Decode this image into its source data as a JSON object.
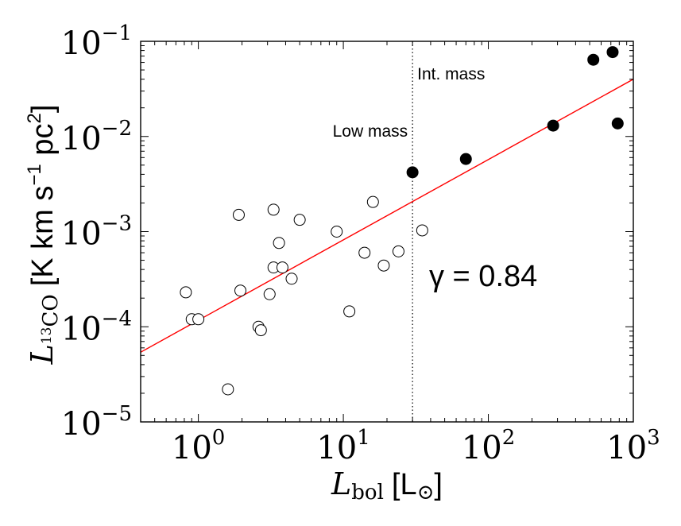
{
  "chart_data": {
    "type": "scatter",
    "xlabel": {
      "symbol": "L",
      "sub": "bol",
      "unit": "[L",
      "sun": "⊙",
      "close": "]"
    },
    "ylabel": {
      "symbol": "L",
      "sub_sup": "13",
      "sub": "CO",
      "unit": "[K km s",
      "unit_sup": "−1",
      "unit_mid": " pc",
      "unit_sup2": "2",
      "close": "]"
    },
    "xscale": "log",
    "yscale": "log",
    "xlim": [
      0.4,
      1000
    ],
    "ylim": [
      1e-05,
      0.1
    ],
    "x_ticks": [
      {
        "value": 1,
        "base": "10",
        "exp": "0"
      },
      {
        "value": 10,
        "base": "10",
        "exp": "1"
      },
      {
        "value": 100,
        "base": "10",
        "exp": "2"
      },
      {
        "value": 1000,
        "base": "10",
        "exp": "3"
      }
    ],
    "y_ticks": [
      {
        "value": 1e-05,
        "base": "10",
        "exp": "−5"
      },
      {
        "value": 0.0001,
        "base": "10",
        "exp": "−4"
      },
      {
        "value": 0.001,
        "base": "10",
        "exp": "−3"
      },
      {
        "value": 0.01,
        "base": "10",
        "exp": "−2"
      },
      {
        "value": 0.1,
        "base": "10",
        "exp": "−1"
      }
    ],
    "grid": false,
    "series": [
      {
        "marker": "open-circle",
        "points": [
          [
            0.82,
            0.00023
          ],
          [
            0.9,
            0.00012
          ],
          [
            1.0,
            0.00012
          ],
          [
            1.6,
            2.2e-05
          ],
          [
            1.9,
            0.0015
          ],
          [
            1.95,
            0.00024
          ],
          [
            2.6,
            0.0001
          ],
          [
            2.7,
            9.2e-05
          ],
          [
            3.1,
            0.00022
          ],
          [
            3.3,
            0.0017
          ],
          [
            3.3,
            0.00042
          ],
          [
            3.6,
            0.00076
          ],
          [
            3.8,
            0.00042
          ],
          [
            4.4,
            0.00032
          ],
          [
            5.0,
            0.00133
          ],
          [
            9.0,
            0.001
          ],
          [
            11.0,
            0.000145
          ],
          [
            14.0,
            0.0006
          ],
          [
            16.0,
            0.00205
          ],
          [
            19.0,
            0.00044
          ],
          [
            24.0,
            0.00062
          ],
          [
            35.0,
            0.00103
          ]
        ]
      },
      {
        "marker": "filled-circle",
        "points": [
          [
            30.0,
            0.0042
          ],
          [
            70.0,
            0.0058
          ],
          [
            280.0,
            0.013
          ],
          [
            530.0,
            0.064
          ],
          [
            720.0,
            0.077
          ],
          [
            780.0,
            0.0137
          ]
        ]
      }
    ],
    "fit_line": {
      "color": "#ff0000",
      "points": [
        [
          0.4,
          5.4e-05
        ],
        [
          1000,
          0.04
        ]
      ]
    },
    "divider": {
      "x": 30,
      "style": "dotted"
    },
    "annotations": {
      "low_mass": "Low mass",
      "int_mass": "Int. mass",
      "gamma": "γ = 0.84"
    }
  }
}
